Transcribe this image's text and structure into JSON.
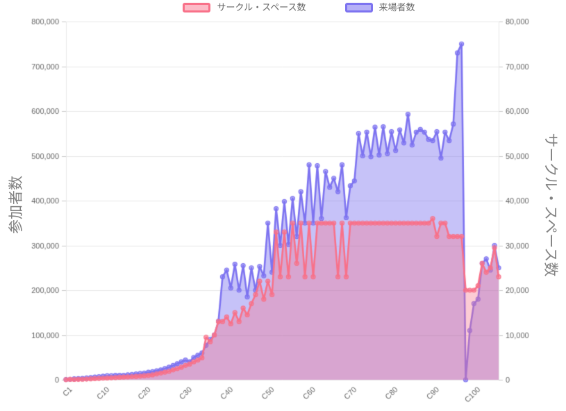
{
  "left_axis": {
    "title": "参加者数",
    "min": 0,
    "max": 800000,
    "step": 100000,
    "tick_labels": [
      "0",
      "100,000",
      "200,000",
      "300,000",
      "400,000",
      "500,000",
      "600,000",
      "700,000",
      "800,000"
    ]
  },
  "right_axis": {
    "title": "サークル・スペース数",
    "min": 0,
    "max": 80000,
    "step": 10000,
    "tick_labels": [
      "0",
      "10,000",
      "20,000",
      "30,000",
      "40,000",
      "50,000",
      "60,000",
      "70,000",
      "80,000"
    ]
  },
  "x_axis": {
    "tick_labels": [
      "C1",
      "C10",
      "C20",
      "C30",
      "C40",
      "C50",
      "C60",
      "C70",
      "C80",
      "C90",
      "C100"
    ],
    "tick_indices": [
      0,
      9,
      19,
      29,
      39,
      49,
      59,
      69,
      79,
      89,
      99
    ]
  },
  "colors": {
    "grid": "#e7e7e7",
    "tick_stub": "#c9c9c9",
    "tick_text": "#666666",
    "axis_title_text": "#808080"
  },
  "chart_data": {
    "type": "area",
    "title": "",
    "x_prefix": "C",
    "x_range": [
      1,
      106
    ],
    "grid": true,
    "legend_position": "top",
    "left_ylim": [
      0,
      800000
    ],
    "right_ylim": [
      0,
      80000
    ],
    "series": [
      {
        "name": "サークル・スペース数",
        "axis": "right",
        "z": 2,
        "color": "#f87189",
        "fill_alpha": 0.36,
        "values": [
          32,
          90,
          80,
          100,
          120,
          150,
          200,
          250,
          300,
          350,
          400,
          450,
          500,
          550,
          600,
          650,
          700,
          750,
          800,
          900,
          1000,
          1100,
          1300,
          1500,
          1700,
          1900,
          2200,
          2500,
          2800,
          3200,
          3500,
          4000,
          4400,
          4900,
          9500,
          8500,
          10000,
          13000,
          13000,
          14000,
          12500,
          15000,
          13000,
          16000,
          14500,
          17000,
          19000,
          22000,
          18000,
          22000,
          19000,
          33000,
          23000,
          33000,
          23000,
          35000,
          26000,
          35000,
          23000,
          35000,
          23000,
          35000,
          35000,
          35000,
          35000,
          35000,
          23000,
          35000,
          23000,
          35000,
          35000,
          35000,
          35000,
          35000,
          35000,
          35000,
          35000,
          35000,
          35000,
          35000,
          35000,
          35000,
          35000,
          35000,
          35000,
          35000,
          35000,
          35000,
          35000,
          36000,
          32000,
          35000,
          35000,
          32000,
          32000,
          32000,
          32000,
          20000,
          20000,
          20000,
          21000,
          26000,
          24000,
          25000,
          29500,
          23000
        ]
      },
      {
        "name": "来場者数",
        "axis": "left",
        "z": 1,
        "color": "#7d73f0",
        "fill_alpha": 0.44,
        "values": [
          700,
          1000,
          2000,
          2500,
          3000,
          4000,
          5000,
          6000,
          7000,
          8000,
          9000,
          9000,
          10000,
          10000,
          10000,
          11000,
          12000,
          13000,
          14000,
          15000,
          17000,
          18000,
          20000,
          22000,
          25000,
          28000,
          32000,
          36000,
          40000,
          44000,
          40000,
          50000,
          55000,
          60000,
          77000,
          90000,
          100000,
          131000,
          230000,
          245000,
          205000,
          258000,
          200000,
          255000,
          185000,
          250000,
          200000,
          253000,
          232000,
          350000,
          240000,
          382000,
          300000,
          398000,
          302000,
          405000,
          320000,
          420000,
          350000,
          480000,
          350000,
          478000,
          360000,
          465000,
          430000,
          450000,
          420000,
          480000,
          362000,
          433000,
          444000,
          550000,
          500000,
          553000,
          498000,
          564000,
          502000,
          565000,
          505000,
          554000,
          512000,
          558000,
          529000,
          593000,
          524000,
          553000,
          559000,
          553000,
          537000,
          534000,
          554000,
          495000,
          553000,
          534000,
          571000,
          730000,
          750000,
          0,
          110000,
          170000,
          180000,
          260000,
          270000,
          245000,
          300000,
          250000
        ]
      }
    ]
  }
}
